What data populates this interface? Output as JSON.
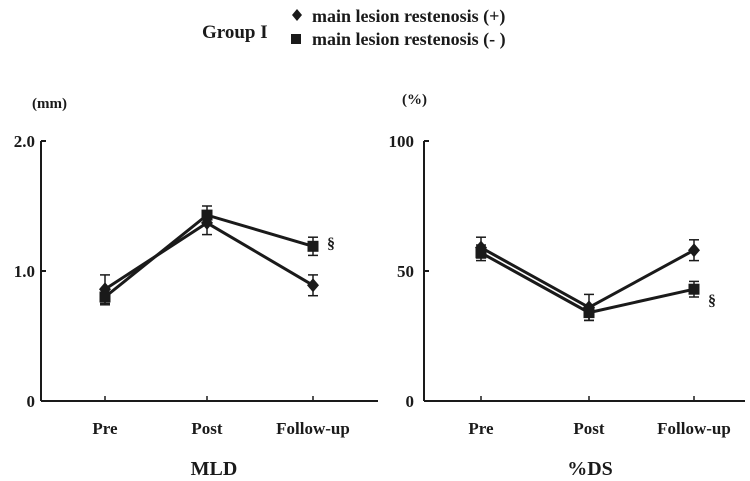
{
  "legend": {
    "group_label": "Group I",
    "placement": "top-center"
  },
  "chart_data": [
    {
      "type": "line",
      "title": "MLD",
      "unit_label": "(mm)",
      "categories": [
        "Pre",
        "Post",
        "Follow-up"
      ],
      "ylim": [
        0,
        2.0
      ],
      "yticks": [
        {
          "value": 0,
          "label": "0"
        },
        {
          "value": 1.0,
          "label": "1.0"
        },
        {
          "value": 2.0,
          "label": "2.0"
        }
      ],
      "grid": false,
      "series": [
        {
          "name": "main lesion restenosis (+)",
          "marker": "diamond",
          "values": [
            0.86,
            1.37,
            0.89
          ],
          "errors": [
            0.11,
            0.09,
            0.08
          ]
        },
        {
          "name": "main lesion restenosis (- )",
          "marker": "square",
          "values": [
            0.8,
            1.43,
            1.19
          ],
          "errors": [
            0.06,
            0.07,
            0.07
          ]
        }
      ],
      "annotations": [
        {
          "text": "§",
          "category": "Follow-up",
          "value": 1.22
        }
      ]
    },
    {
      "type": "line",
      "title": "%DS",
      "unit_label": "(%)",
      "categories": [
        "Pre",
        "Post",
        "Follow-up"
      ],
      "ylim": [
        0,
        100
      ],
      "yticks": [
        {
          "value": 0,
          "label": "0"
        },
        {
          "value": 50,
          "label": "50"
        },
        {
          "value": 100,
          "label": "100"
        }
      ],
      "grid": false,
      "series": [
        {
          "name": "main lesion restenosis (+)",
          "marker": "diamond",
          "values": [
            59,
            36,
            58
          ],
          "errors": [
            4,
            5,
            4
          ]
        },
        {
          "name": "main lesion restenosis (- )",
          "marker": "square",
          "values": [
            57,
            34,
            43
          ],
          "errors": [
            3,
            3,
            3
          ]
        }
      ],
      "annotations": [
        {
          "text": "§",
          "category": "Follow-up",
          "value": 39
        }
      ]
    }
  ]
}
